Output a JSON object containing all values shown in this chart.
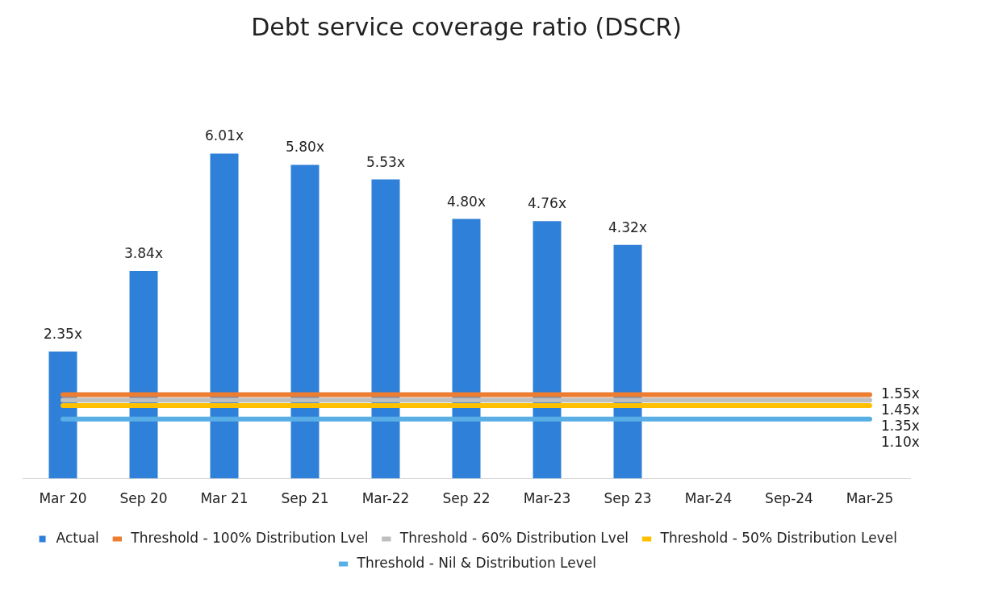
{
  "chart_data": {
    "type": "bar",
    "title": "Debt service coverage ratio (DSCR)",
    "categories": [
      "Mar 20",
      "Sep 20",
      "Mar 21",
      "Sep 21",
      "Mar-22",
      "Sep 22",
      "Mar-23",
      "Sep 23",
      "Mar-24",
      "Sep-24",
      "Mar-25"
    ],
    "series": [
      {
        "name": "Actual",
        "color": "#2f80d8",
        "values": [
          2.35,
          3.84,
          6.01,
          5.8,
          5.53,
          4.8,
          4.76,
          4.32,
          null,
          null,
          null
        ],
        "value_labels": [
          "2.35x",
          "3.84x",
          "6.01x",
          "5.80x",
          "5.53x",
          "4.80x",
          "4.76x",
          "4.32x",
          null,
          null,
          null
        ]
      },
      {
        "name": "Threshold - 100% Distribution Lvel",
        "type": "line",
        "color": "#ed7d31",
        "values": [
          1.55,
          1.55,
          1.55,
          1.55,
          1.55,
          1.55,
          1.55,
          1.55,
          1.55,
          1.55,
          1.55
        ],
        "value_labels": [
          null,
          null,
          null,
          null,
          null,
          null,
          null,
          null,
          null,
          null,
          "1.55x"
        ]
      },
      {
        "name": "Threshold - 60% Distribution Lvel",
        "type": "line",
        "color": "#bfbfbf",
        "values": [
          1.45,
          1.45,
          1.45,
          1.45,
          1.45,
          1.45,
          1.45,
          1.45,
          1.45,
          1.45,
          1.45
        ],
        "value_labels": [
          null,
          null,
          null,
          null,
          null,
          null,
          null,
          null,
          null,
          null,
          "1.45x"
        ]
      },
      {
        "name": "Threshold - 50% Distribution Level",
        "type": "line",
        "color": "#ffc000",
        "values": [
          1.35,
          1.35,
          1.35,
          1.35,
          1.35,
          1.35,
          1.35,
          1.35,
          1.35,
          1.35,
          1.35
        ],
        "value_labels": [
          null,
          null,
          null,
          null,
          null,
          null,
          null,
          null,
          null,
          null,
          "1.35x"
        ]
      },
      {
        "name": "Threshold - Nil & Distribution Level",
        "type": "line",
        "color": "#5aaee6",
        "values": [
          1.1,
          1.1,
          1.1,
          1.1,
          1.1,
          1.1,
          1.1,
          1.1,
          1.1,
          1.1,
          1.1
        ],
        "value_labels": [
          null,
          null,
          null,
          null,
          null,
          null,
          null,
          null,
          null,
          null,
          "1.10x"
        ]
      }
    ],
    "grid": false,
    "legend": "bottom",
    "marker": "none",
    "line_style": "solid"
  }
}
